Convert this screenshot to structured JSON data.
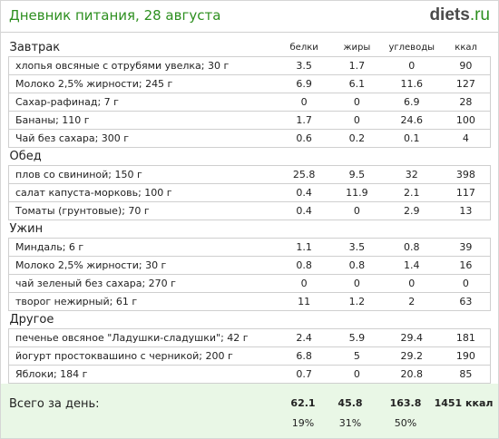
{
  "header": {
    "title": "Дневник питания, 28 августа",
    "logo_brand": "diets",
    "logo_tld": ".ru"
  },
  "columns": [
    "белки",
    "жиры",
    "углеводы",
    "ккал"
  ],
  "sections": [
    {
      "name": "Завтрак",
      "items": [
        {
          "name": "хлопья овсяные с отрубями увелка; 30 г",
          "protein": "3.5",
          "fat": "1.7",
          "carbs": "0",
          "kcal": "90"
        },
        {
          "name": "Молоко 2,5% жирности; 245 г",
          "protein": "6.9",
          "fat": "6.1",
          "carbs": "11.6",
          "kcal": "127"
        },
        {
          "name": "Сахар-рафинад; 7 г",
          "protein": "0",
          "fat": "0",
          "carbs": "6.9",
          "kcal": "28"
        },
        {
          "name": "Бананы; 110 г",
          "protein": "1.7",
          "fat": "0",
          "carbs": "24.6",
          "kcal": "100"
        },
        {
          "name": "Чай без сахара; 300 г",
          "protein": "0.6",
          "fat": "0.2",
          "carbs": "0.1",
          "kcal": "4"
        }
      ]
    },
    {
      "name": "Обед",
      "items": [
        {
          "name": "плов со свининой; 150 г",
          "protein": "25.8",
          "fat": "9.5",
          "carbs": "32",
          "kcal": "398"
        },
        {
          "name": "салат капуста-морковь; 100 г",
          "protein": "0.4",
          "fat": "11.9",
          "carbs": "2.1",
          "kcal": "117"
        },
        {
          "name": "Томаты (грунтовые); 70 г",
          "protein": "0.4",
          "fat": "0",
          "carbs": "2.9",
          "kcal": "13"
        }
      ]
    },
    {
      "name": "Ужин",
      "items": [
        {
          "name": "Миндаль; 6 г",
          "protein": "1.1",
          "fat": "3.5",
          "carbs": "0.8",
          "kcal": "39"
        },
        {
          "name": "Молоко 2,5% жирности; 30 г",
          "protein": "0.8",
          "fat": "0.8",
          "carbs": "1.4",
          "kcal": "16"
        },
        {
          "name": "чай зеленый без сахара; 270 г",
          "protein": "0",
          "fat": "0",
          "carbs": "0",
          "kcal": "0"
        },
        {
          "name": "творог нежирный; 61 г",
          "protein": "11",
          "fat": "1.2",
          "carbs": "2",
          "kcal": "63"
        }
      ]
    },
    {
      "name": "Другое",
      "items": [
        {
          "name": "печенье овсяное \"Ладушки-сладушки\"; 42 г",
          "protein": "2.4",
          "fat": "5.9",
          "carbs": "29.4",
          "kcal": "181"
        },
        {
          "name": "йогурт простоквашино с черникой; 200 г",
          "protein": "6.8",
          "fat": "5",
          "carbs": "29.2",
          "kcal": "190"
        },
        {
          "name": "Яблоки; 184 г",
          "protein": "0.7",
          "fat": "0",
          "carbs": "20.8",
          "kcal": "85"
        }
      ]
    }
  ],
  "totals": {
    "label": "Всего за день:",
    "protein": "62.1",
    "fat": "45.8",
    "carbs": "163.8",
    "kcal": "1451 ккал",
    "protein_pct": "19%",
    "fat_pct": "31%",
    "carbs_pct": "50%"
  },
  "colors": {
    "accent_green": "#2d8f1f",
    "footer_bg": "#e9f7e6",
    "border": "#cfcfcf"
  }
}
